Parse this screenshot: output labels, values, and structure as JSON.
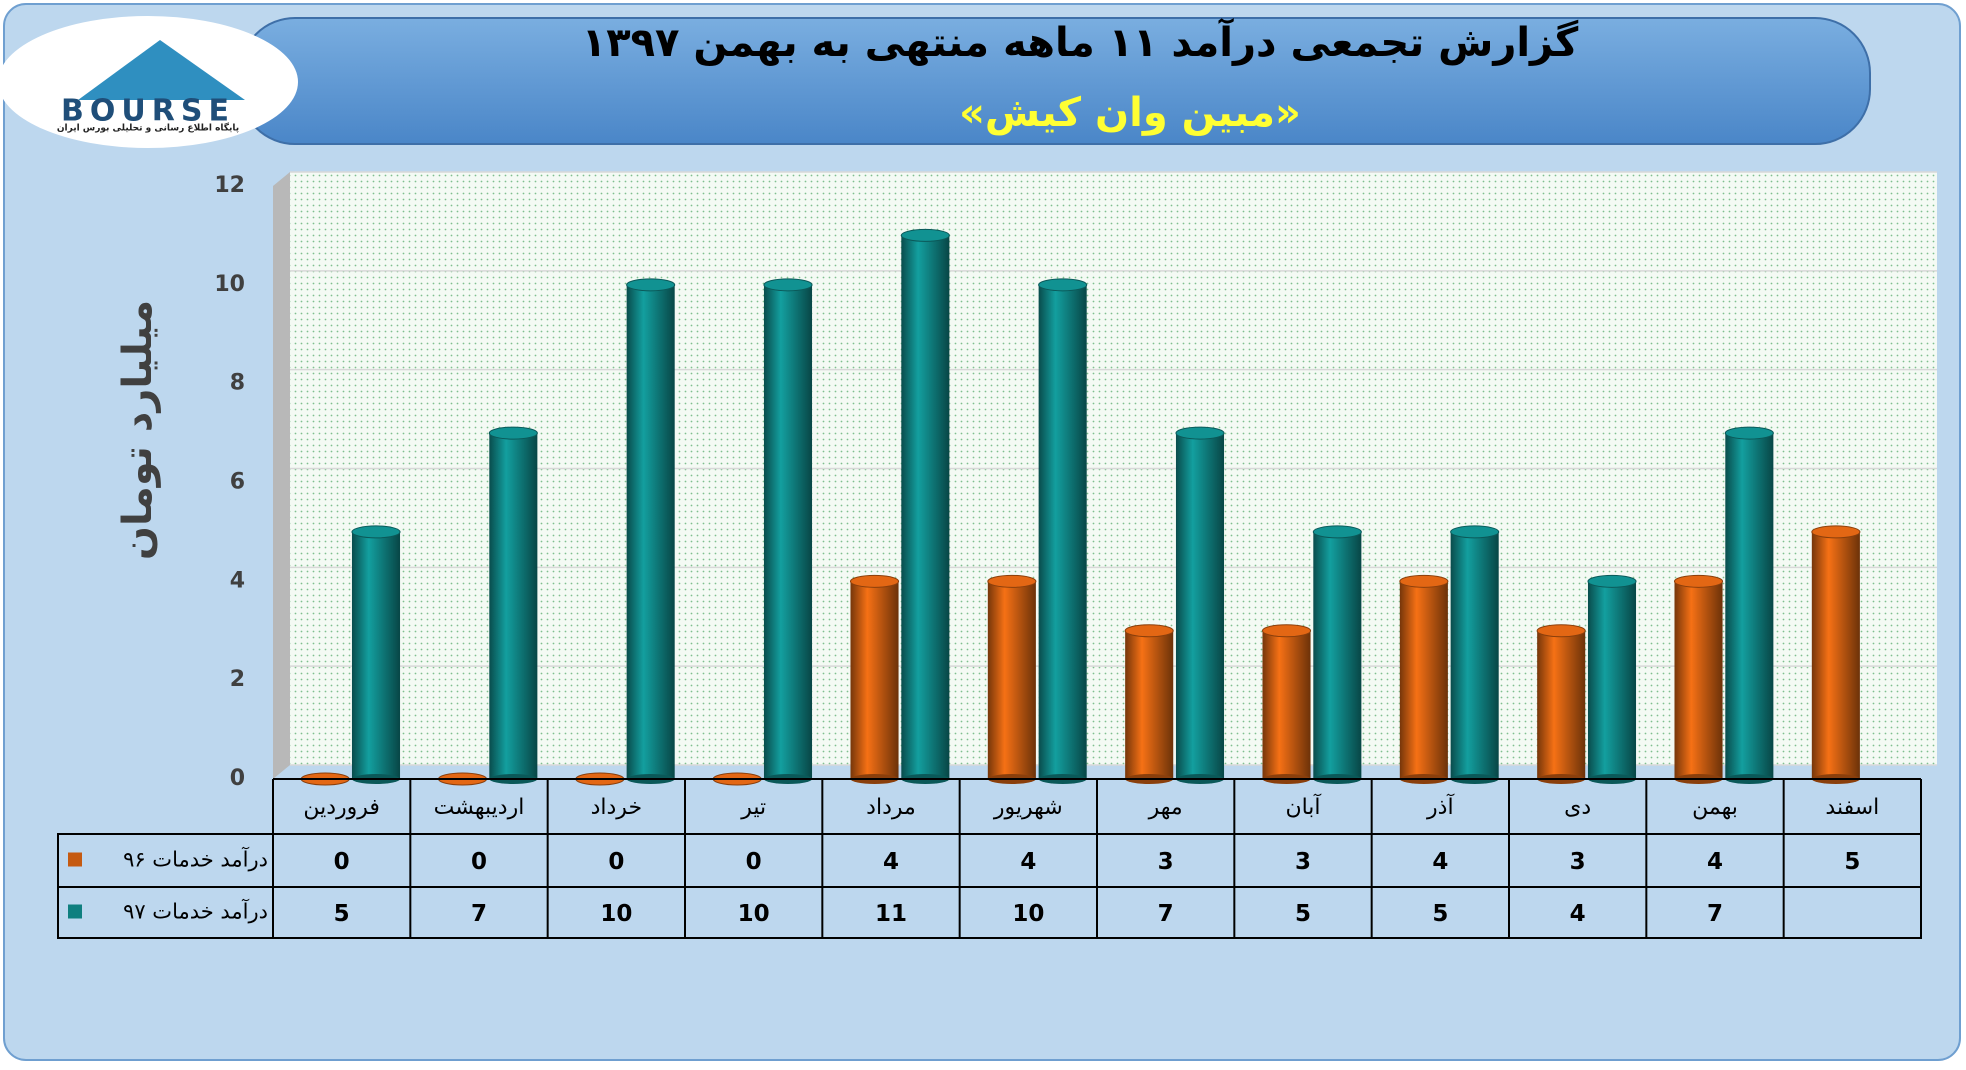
{
  "logo": {
    "name": "BOURSE",
    "tagline": "پایگاه اطلاع رسانی و تحلیلی بورس ایران"
  },
  "chart_data": {
    "type": "bar",
    "title": "گزارش تجمعی درآمد ۱۱ ماهه منتهی به بهمن ۱۳۹۷",
    "subtitle": "«مبین وان کیش»",
    "y_label": "میلیارد تومان",
    "categories": [
      "فروردین",
      "اردیبهشت",
      "خرداد",
      "تیر",
      "مرداد",
      "شهریور",
      "مهر",
      "آبان",
      "آذر",
      "دی",
      "بهمن",
      "اسفند"
    ],
    "series": [
      {
        "name": "درآمد خدمات ۹۶",
        "color": "#c55a11",
        "values": [
          0,
          0,
          0,
          0,
          4,
          4,
          3,
          3,
          4,
          3,
          4,
          5
        ]
      },
      {
        "name": "درآمد خدمات ۹۷",
        "color": "#0f7f7f",
        "values": [
          5,
          7,
          10,
          10,
          11,
          10,
          7,
          5,
          5,
          4,
          7,
          null
        ]
      }
    ],
    "ylim": [
      0,
      12
    ],
    "yticks": [
      0,
      2,
      4,
      6,
      8,
      10,
      12
    ],
    "grid": true,
    "data_table": true
  }
}
